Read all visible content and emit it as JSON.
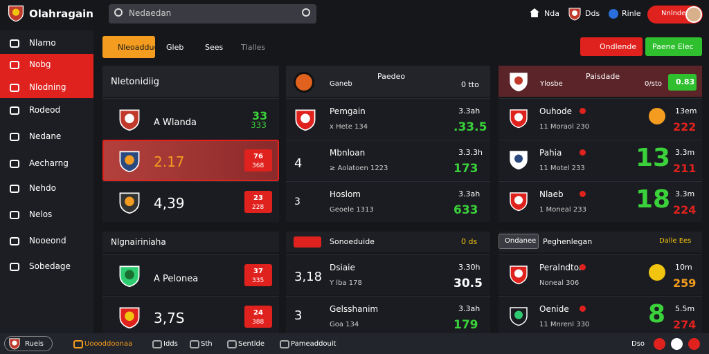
{
  "header": {
    "logo": "Olahragain",
    "search_placeholder": "Nedaedan",
    "nav": [
      "Nda",
      "Dds",
      "Rinle"
    ],
    "account": "Nnlnde"
  },
  "sidebar": {
    "items": [
      "Nlamo",
      "Nobg",
      "Nlodning",
      "Rodeod",
      "Nedane",
      "Aecharng",
      "Nehdo",
      "Nelos",
      "Nooeond",
      "Sobedage"
    ]
  },
  "tabs": {
    "items": [
      "Nleoaddue",
      "Gleb",
      "Sees",
      "Tlalles"
    ],
    "buttons": [
      "Ondlende",
      "Paene Elec"
    ]
  },
  "left_panel": {
    "sections": [
      {
        "title": "Nletonidiig",
        "rows": [
          {
            "name": "A Wlanda",
            "badge": [
              "33",
              "333"
            ]
          },
          {
            "odds": "2.17",
            "badge": [
              "76",
              "368"
            ]
          },
          {
            "odds": "4,39",
            "badge": [
              "23",
              "228"
            ]
          }
        ]
      },
      {
        "title": "Nlgnairiniaha",
        "rows": [
          {
            "name": "A Pelonea",
            "badge": [
              "37",
              "335"
            ]
          },
          {
            "odds": "3,7S",
            "badge": [
              "24",
              "388"
            ]
          }
        ]
      }
    ]
  },
  "center_panel": {
    "header": {
      "title": "Paedeo",
      "left": "Ganeb",
      "right": "0 tto"
    },
    "section_title": "Sonoeduide",
    "section_right": "0 ds",
    "rows": [
      {
        "name": "Pemgain",
        "sub": "x Hete 134",
        "right_top": "3.3ah",
        "right_main": ".33.5"
      },
      {
        "lead": "4",
        "name": "Mbnloan",
        "sub": "≥ Aolatoen 1223",
        "right_top": "3.3.3h",
        "right_main": "173"
      },
      {
        "lead": "3",
        "name": "Hoslom",
        "sub": "Geoele 1313",
        "right_top": "3.3ah",
        "right_main": "633"
      },
      {
        "lead": "3,18",
        "name": "Dsiaie",
        "sub": "Y lba 178",
        "right_top": "3.30h",
        "right_main": "30.5"
      },
      {
        "lead": "3",
        "name": "Gelsshanim",
        "sub": "Goa 134",
        "right_top": "3.3ah",
        "right_main": "179"
      }
    ]
  },
  "right_panel": {
    "header": {
      "title": "Paisdade",
      "left": "Ylosbe",
      "right": "0/sto",
      "badge": "0.83"
    },
    "section_tag": "Ondanee",
    "section_title": "Peghenlegan",
    "section_right": "Dalle Ees",
    "rows": [
      {
        "name": "Ouhode",
        "sub": "11 Moraol 230",
        "right_top": "13em",
        "right_main": "222"
      },
      {
        "name": "Pahia",
        "sub": "11 Motel 233",
        "big": "13",
        "right_top": "3.3m",
        "right_main": "211"
      },
      {
        "name": "Nlaeb",
        "sub": "1 Moneal 233",
        "big": "18",
        "right_top": "3.3m",
        "right_main": "224"
      },
      {
        "name": "Peralndtor",
        "sub": "Noneal 306",
        "right_top": "10m",
        "right_main": "259"
      },
      {
        "name": "Oenide",
        "sub": "11 Mnrenl 330",
        "big": "8",
        "right_top": "5.5m",
        "right_main": "274"
      }
    ]
  },
  "footer": {
    "items": [
      "Rueis",
      "Uoooddoonaa",
      "Idds",
      "Sth",
      "Sentlde",
      "Pameaddouit"
    ],
    "right": "Dso"
  }
}
